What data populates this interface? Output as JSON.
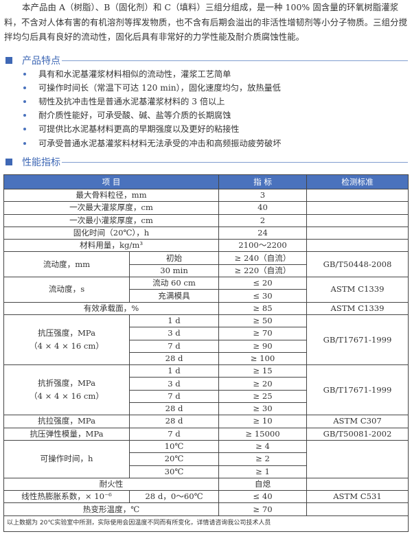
{
  "intro": "本产品由 A（树脂）、B（固化剂）和 C（填料）三组分组成，是一种 100% 固含量的环氧树脂灌浆料，不含对人体有害的有机溶剂等挥发物质，也不含有后期会溢出的非活性增韧剂等小分子物质。三组分搅拌均匀后具有良好的流动性，固化后具有非常好的力学性能及耐介质腐蚀性能。",
  "features": {
    "title": "产品特点",
    "items": [
      "具有和水泥基灌浆材料相似的流动性，灌浆工艺简单",
      "可操作时间长（常温下可达 120 min），固化速度均匀，放热量低",
      "韧性及抗冲击性是普通水泥基灌浆材料的 3 倍以上",
      "耐介质性能好，可承受酸、碱、盐等介质的长期腐蚀",
      "可提供比水泥基材料更高的早期强度以及更好的粘接性",
      "可承受普通水泥基灌浆料材料无法承受的冲击和高频振动疲劳破坏"
    ]
  },
  "specs": {
    "title": "性能指标",
    "headers": [
      "项  目",
      "指    标",
      "检测标准"
    ],
    "rows": {
      "r1": [
        "最大骨料粒径，mm",
        "3"
      ],
      "r2": [
        "一次最大灌浆厚度，cm",
        "40"
      ],
      "r3": [
        "一次最小灌浆厚度，cm",
        "2"
      ],
      "r4": [
        "固化时间（20℃），h",
        "24"
      ],
      "r5": [
        "材料用量，kg/m³",
        "2100～2200"
      ],
      "flow_mm": {
        "label": "流动度，mm",
        "sub": [
          "初始",
          "30 min"
        ],
        "values": [
          "≥ 240（自流）",
          "≥ 220（自流）"
        ],
        "std": "GB/T50448-2008"
      },
      "flow_s": {
        "label": "流动度，s",
        "sub": [
          "流动 60 cm",
          "充满模具"
        ],
        "values": [
          "≤ 20",
          "≤ 30"
        ],
        "std": "ASTM C1339"
      },
      "bearing": [
        "有效承载面，%",
        "≥ 85",
        "ASTM C1339"
      ],
      "compress": {
        "label": "抗压强度，MPa",
        "label2": "（4 × 4 × 16 cm）",
        "sub": [
          "1 d",
          "3 d",
          "7 d",
          "28 d"
        ],
        "values": [
          "≥ 50",
          "≥ 70",
          "≥ 90",
          "≥ 100"
        ],
        "std": "GB/T17671-1999"
      },
      "flex": {
        "label": "抗折强度，MPa",
        "label2": "（4 × 4 × 16 cm）",
        "sub": [
          "1 d",
          "3 d",
          "7 d",
          "28 d"
        ],
        "values": [
          "≥ 15",
          "≥ 20",
          "≥ 25",
          "≥ 30"
        ],
        "std": "GB/T17671-1999"
      },
      "tensile": [
        "抗拉强度，MPa",
        "28 d",
        "≥ 10",
        "ASTM C307"
      ],
      "modulus": [
        "抗压弹性模量，MPa",
        "7 d",
        "≥ 15000",
        "GB/T50081-2002"
      ],
      "worktime": {
        "label": "可操作时间，h",
        "sub": [
          "10℃",
          "20℃",
          "30℃"
        ],
        "values": [
          "≥ 4",
          "≥ 2",
          "≥ 1"
        ]
      },
      "fire": [
        "耐火性",
        "自熄"
      ],
      "expansion": [
        "线性热膨胀系数，× 10⁻⁶",
        "28 d，0～60℃",
        "≤ 40",
        "ASTM C531"
      ],
      "hdt": [
        "热变形温度，℃",
        "≥ 70"
      ]
    },
    "footnote": "以上数据为 20℃实验室中所测，实际使用会因温度不同而有所变化，详情请咨询我公司技术人员"
  },
  "colors": {
    "accent": "#3f68b5",
    "header_bg": "#4a72bd"
  }
}
